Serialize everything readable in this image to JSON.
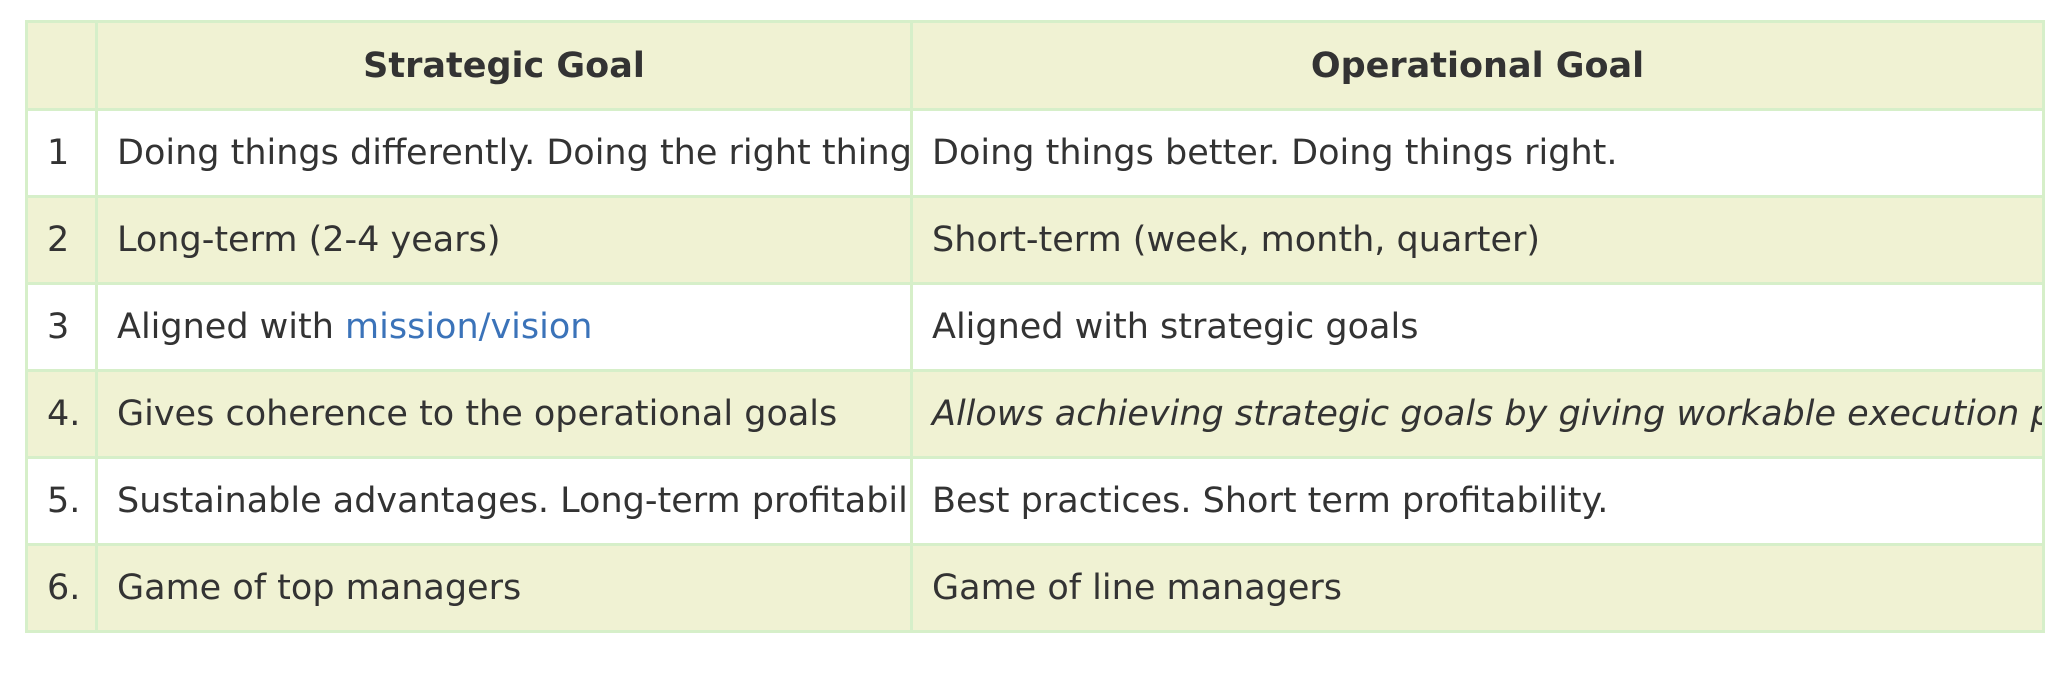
{
  "table": {
    "headers": {
      "number": "",
      "strategic": "Strategic Goal",
      "operational": "Operational Goal"
    },
    "rows": [
      {
        "number": "1",
        "strategic": "Doing things differently. Doing the right things.",
        "operational": "Doing things better. Doing things right."
      },
      {
        "number": "2",
        "strategic": "Long-term (2-4 years)",
        "operational": "Short-term (week, month, quarter)"
      },
      {
        "number": "3",
        "strategic_prefix": "Aligned with ",
        "strategic_link": "mission/vision",
        "operational": "Aligned with strategic goals"
      },
      {
        "number": "4.",
        "strategic": "Gives coherence to the operational goals",
        "operational": "Allows achieving strategic goals by giving workable execution plan"
      },
      {
        "number": "5.",
        "strategic": "Sustainable advantages. Long-term profitability.",
        "operational": "Best practices. Short term profitability."
      },
      {
        "number": "6.",
        "strategic": "Game of top managers",
        "operational": "Game of line managers"
      }
    ]
  },
  "colors": {
    "header_bg": "#f0f2d3",
    "stripe_bg": "#f0f2d3",
    "border": "#d6efc9",
    "link": "#3b73b9",
    "text": "#333333"
  }
}
